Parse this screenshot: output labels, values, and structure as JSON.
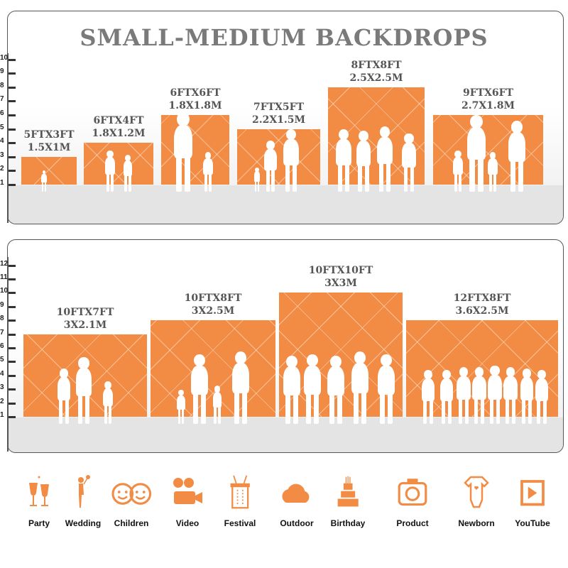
{
  "title": "SMALL-MEDIUM BACKDROPS",
  "accent_color": "#f28c45",
  "top_axis": [
    "1",
    "2",
    "3",
    "4",
    "5",
    "6",
    "7",
    "8",
    "9",
    "10"
  ],
  "bottom_axis": [
    "1",
    "2",
    "3",
    "4",
    "5",
    "6",
    "7",
    "8",
    "9",
    "10",
    "11",
    "12"
  ],
  "top_backdrops": [
    {
      "ft": "5FTX3FT",
      "m": "1.5X1M",
      "height_ft": 3
    },
    {
      "ft": "6FTX4FT",
      "m": "1.8X1.2M",
      "height_ft": 4
    },
    {
      "ft": "6FTX6FT",
      "m": "1.8X1.8M",
      "height_ft": 6
    },
    {
      "ft": "7FTX5FT",
      "m": "2.2X1.5M",
      "height_ft": 5
    },
    {
      "ft": "8FTX8FT",
      "m": "2.5X2.5M",
      "height_ft": 8
    },
    {
      "ft": "9FTX6FT",
      "m": "2.7X1.8M",
      "height_ft": 6
    }
  ],
  "bottom_backdrops": [
    {
      "ft": "10FTX7FT",
      "m": "3X2.1M",
      "height_ft": 7
    },
    {
      "ft": "10FTX8FT",
      "m": "3X2.5M",
      "height_ft": 8
    },
    {
      "ft": "10FTX10FT",
      "m": "3X3M",
      "height_ft": 10
    },
    {
      "ft": "12FTX8FT",
      "m": "3.6X2.5M",
      "height_ft": 8
    }
  ],
  "uses": [
    {
      "label": "Party",
      "icon": "champagne-glasses-icon"
    },
    {
      "label": "Wedding",
      "icon": "wedding-couple-icon"
    },
    {
      "label": "Children",
      "icon": "children-faces-icon"
    },
    {
      "label": "Video",
      "icon": "film-camera-icon"
    },
    {
      "label": "Festival",
      "icon": "gift-box-icon"
    },
    {
      "label": "Outdoor",
      "icon": "cloud-icon"
    },
    {
      "label": "Birthday",
      "icon": "birthday-cake-icon"
    },
    {
      "label": "Product",
      "icon": "camera-icon"
    },
    {
      "label": "Newborn",
      "icon": "baby-onesie-icon"
    },
    {
      "label": "YouTube",
      "icon": "play-button-icon"
    }
  ]
}
